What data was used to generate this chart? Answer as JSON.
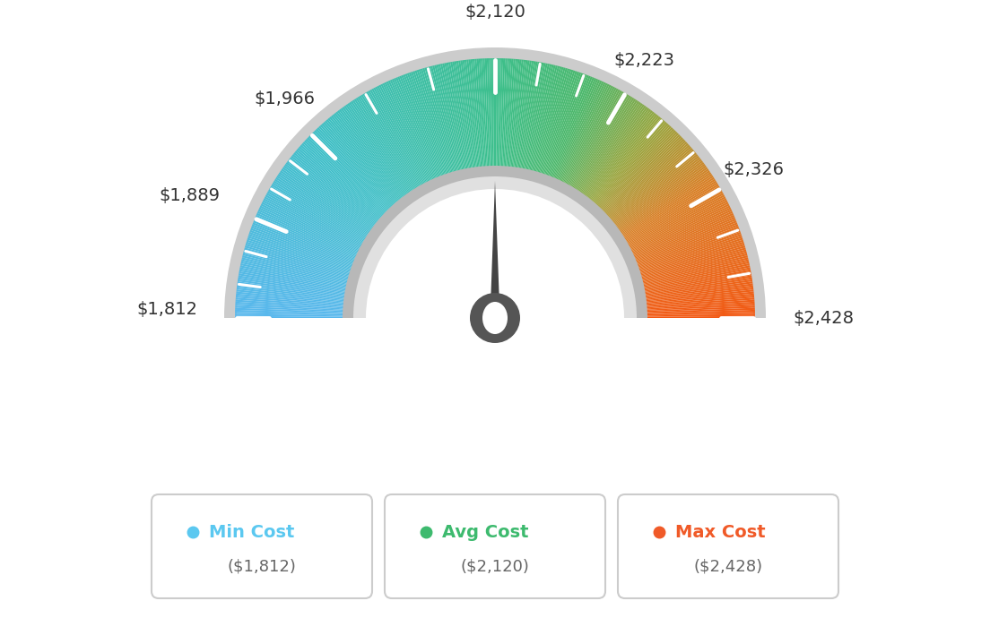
{
  "min_val": 1812,
  "avg_val": 2120,
  "max_val": 2428,
  "tick_labels": [
    "$1,812",
    "$1,889",
    "$1,966",
    "$2,120",
    "$2,223",
    "$2,326",
    "$2,428"
  ],
  "tick_values": [
    1812,
    1889,
    1966,
    2120,
    2223,
    2326,
    2428
  ],
  "legend": [
    {
      "label": "Min Cost",
      "value": "($1,812)",
      "dot_color": "#5bc8f0"
    },
    {
      "label": "Avg Cost",
      "value": "($2,120)",
      "dot_color": "#3dba6e"
    },
    {
      "label": "Max Cost",
      "value": "($2,428)",
      "dot_color": "#f05a28"
    }
  ],
  "gradient_colors": [
    [
      0.0,
      [
        0.35,
        0.72,
        0.93
      ]
    ],
    [
      0.25,
      [
        0.25,
        0.75,
        0.78
      ]
    ],
    [
      0.5,
      [
        0.24,
        0.75,
        0.55
      ]
    ],
    [
      0.62,
      [
        0.3,
        0.72,
        0.42
      ]
    ],
    [
      0.72,
      [
        0.6,
        0.65,
        0.25
      ]
    ],
    [
      0.82,
      [
        0.85,
        0.5,
        0.15
      ]
    ],
    [
      1.0,
      [
        0.95,
        0.35,
        0.08
      ]
    ]
  ],
  "needle_value": 2120,
  "bg_color": "#ffffff",
  "outer_border_color": "#c8c8c8",
  "inner_sep_color_outer": "#c0c0c0",
  "inner_sep_color_inner": "#e8e8e8",
  "hub_color": "#555555",
  "needle_color": "#444444"
}
